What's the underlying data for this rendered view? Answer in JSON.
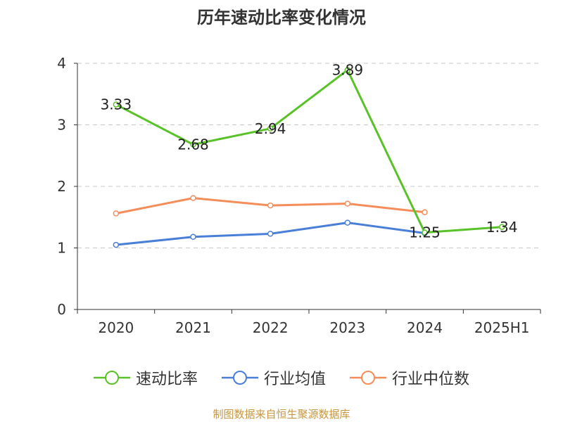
{
  "page": {
    "source_text": "制图数据来自恒生聚源数据库"
  },
  "chart_data": {
    "type": "line",
    "title": "历年速动比率变化情况",
    "categories": [
      "2020",
      "2021",
      "2022",
      "2023",
      "2024",
      "2025H1"
    ],
    "ylim": [
      0,
      4
    ],
    "yticks": [
      0,
      1,
      2,
      3,
      4
    ],
    "grid": true,
    "legend_position": "bottom",
    "series": [
      {
        "name": "速动比率",
        "color": "#5ac229",
        "values": [
          3.33,
          2.68,
          2.94,
          3.89,
          1.25,
          1.34
        ],
        "labels": [
          "3.33",
          "2.68",
          "2.94",
          "3.89",
          "1.25",
          "1.34"
        ]
      },
      {
        "name": "行业均值",
        "color": "#4a7fd8",
        "values": [
          1.05,
          1.18,
          1.23,
          1.41,
          1.24,
          null
        ]
      },
      {
        "name": "行业中位数",
        "color": "#f58d5a",
        "values": [
          1.56,
          1.81,
          1.69,
          1.72,
          1.58,
          null
        ]
      }
    ]
  }
}
